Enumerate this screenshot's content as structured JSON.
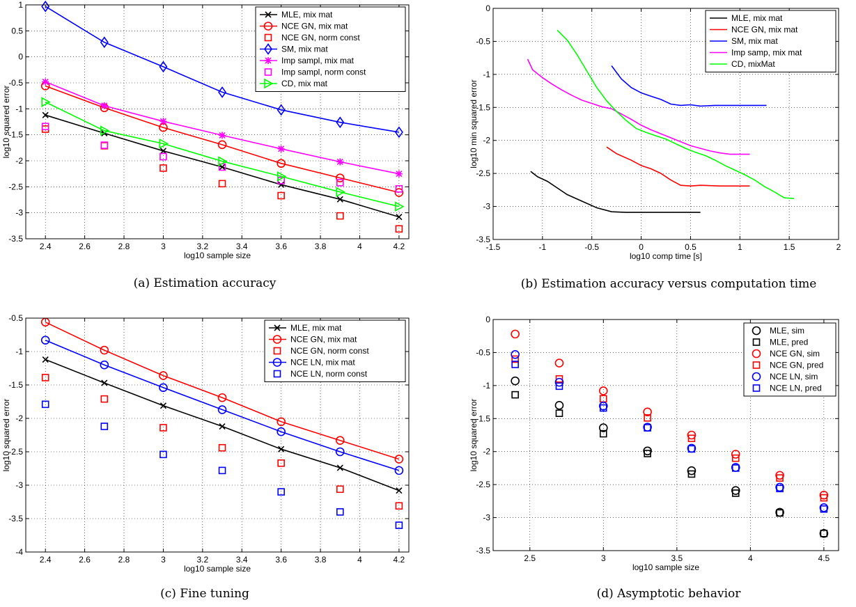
{
  "chart_data": [
    {
      "type": "line",
      "caption": "(a) Estimation accuracy",
      "xlabel": "log10 sample size",
      "ylabel": "log10 squared error",
      "xlim": [
        2.3,
        4.25
      ],
      "ylim": [
        -3.5,
        1
      ],
      "xticks": [
        2.4,
        2.6,
        2.8,
        3,
        3.2,
        3.4,
        3.6,
        3.8,
        4,
        4.2
      ],
      "yticks": [
        -3.5,
        -3,
        -2.5,
        -2,
        -1.5,
        -1,
        -0.5,
        0,
        0.5,
        1
      ],
      "grid": true,
      "legend_position": "top-right",
      "series": [
        {
          "name": "MLE, mix mat",
          "color": "#000000",
          "marker": "x",
          "line": true,
          "x": [
            2.4,
            2.7,
            3.0,
            3.3,
            3.6,
            3.9,
            4.2
          ],
          "y": [
            -1.12,
            -1.47,
            -1.81,
            -2.12,
            -2.46,
            -2.74,
            -3.08
          ]
        },
        {
          "name": "NCE GN, mix mat",
          "color": "#ff0000",
          "marker": "o",
          "line": true,
          "x": [
            2.4,
            2.7,
            3.0,
            3.3,
            3.6,
            3.9,
            4.2
          ],
          "y": [
            -0.56,
            -0.98,
            -1.36,
            -1.69,
            -2.05,
            -2.33,
            -2.61
          ]
        },
        {
          "name": "NCE GN, norm const",
          "color": "#ff0000",
          "marker": "s",
          "line": false,
          "x": [
            2.4,
            2.7,
            3.0,
            3.3,
            3.6,
            3.9,
            4.2
          ],
          "y": [
            -1.39,
            -1.71,
            -2.14,
            -2.44,
            -2.67,
            -3.06,
            -3.31
          ]
        },
        {
          "name": "SM, mix mat",
          "color": "#0000ff",
          "marker": "d",
          "line": true,
          "x": [
            2.4,
            2.7,
            3.0,
            3.3,
            3.6,
            3.9,
            4.2
          ],
          "y": [
            0.97,
            0.28,
            -0.19,
            -0.68,
            -1.02,
            -1.26,
            -1.45
          ]
        },
        {
          "name": "Imp sampl, mix mat",
          "color": "#ff00ff",
          "marker": "*",
          "line": true,
          "x": [
            2.4,
            2.7,
            3.0,
            3.3,
            3.6,
            3.9,
            4.2
          ],
          "y": [
            -0.48,
            -0.94,
            -1.24,
            -1.51,
            -1.77,
            -2.02,
            -2.25
          ]
        },
        {
          "name": "Imp sampl, norm const",
          "color": "#ff00ff",
          "marker": "s",
          "line": false,
          "x": [
            2.4,
            2.7,
            3.0,
            3.3,
            3.6,
            3.9,
            4.2
          ],
          "y": [
            -1.34,
            -1.7,
            -1.92,
            -2.12,
            -2.38,
            -2.42,
            -2.54
          ]
        },
        {
          "name": "CD, mix mat",
          "color": "#00ff00",
          "marker": ">",
          "line": true,
          "x": [
            2.4,
            2.7,
            3.0,
            3.3,
            3.6,
            3.9,
            4.2
          ],
          "y": [
            -0.87,
            -1.42,
            -1.67,
            -2.01,
            -2.3,
            -2.6,
            -2.88
          ]
        }
      ]
    },
    {
      "type": "line",
      "caption": "(b) Estimation accuracy versus computation time",
      "xlabel": "log10 comp time [s]",
      "ylabel": "log10 min squared error",
      "xlim": [
        -1.5,
        2
      ],
      "ylim": [
        -3.5,
        0
      ],
      "xticks": [
        -1.5,
        -1,
        -0.5,
        0,
        0.5,
        1,
        1.5,
        2
      ],
      "yticks": [
        -3.5,
        -3,
        -2.5,
        -2,
        -1.5,
        -1,
        -0.5,
        0
      ],
      "grid": true,
      "legend_position": "top-right",
      "series": [
        {
          "name": "MLE, mix mat",
          "color": "#000000",
          "marker": "",
          "line": true,
          "x": [
            -1.12,
            -1.05,
            -0.95,
            -0.85,
            -0.75,
            -0.6,
            -0.45,
            -0.3,
            -0.15,
            0,
            0.2,
            0.4,
            0.6
          ],
          "y": [
            -2.47,
            -2.55,
            -2.62,
            -2.72,
            -2.82,
            -2.92,
            -3.02,
            -3.08,
            -3.09,
            -3.09,
            -3.09,
            -3.09,
            -3.09
          ]
        },
        {
          "name": "NCE GN, mix mat",
          "color": "#ff0000",
          "marker": "",
          "line": true,
          "x": [
            -0.35,
            -0.25,
            -0.1,
            0.0,
            0.1,
            0.2,
            0.3,
            0.4,
            0.5,
            0.6,
            0.8,
            1.1
          ],
          "y": [
            -2.1,
            -2.2,
            -2.3,
            -2.38,
            -2.43,
            -2.5,
            -2.6,
            -2.68,
            -2.69,
            -2.68,
            -2.69,
            -2.69
          ]
        },
        {
          "name": "SM, mix mat",
          "color": "#0000ff",
          "marker": "",
          "line": true,
          "x": [
            -0.3,
            -0.2,
            -0.1,
            0.0,
            0.1,
            0.2,
            0.3,
            0.4,
            0.5,
            0.6,
            0.75,
            1.0,
            1.27
          ],
          "y": [
            -0.87,
            -1.07,
            -1.2,
            -1.28,
            -1.33,
            -1.38,
            -1.45,
            -1.47,
            -1.46,
            -1.48,
            -1.47,
            -1.47,
            -1.47
          ]
        },
        {
          "name": "Imp samp, mix mat",
          "color": "#ff00ff",
          "marker": "",
          "line": true,
          "x": [
            -1.15,
            -1.1,
            -1.0,
            -0.9,
            -0.8,
            -0.7,
            -0.6,
            -0.5,
            -0.4,
            -0.3,
            -0.2,
            -0.1,
            0.0,
            0.1,
            0.2,
            0.3,
            0.4,
            0.5,
            0.6,
            0.7,
            0.8,
            0.9,
            1.1
          ],
          "y": [
            -0.77,
            -0.93,
            -1.05,
            -1.15,
            -1.24,
            -1.32,
            -1.39,
            -1.44,
            -1.49,
            -1.52,
            -1.6,
            -1.68,
            -1.77,
            -1.84,
            -1.9,
            -1.96,
            -2.02,
            -2.08,
            -2.12,
            -2.16,
            -2.19,
            -2.21,
            -2.21
          ]
        },
        {
          "name": "CD, mixMat",
          "color": "#00ff00",
          "marker": "",
          "line": true,
          "x": [
            -0.85,
            -0.75,
            -0.65,
            -0.55,
            -0.45,
            -0.35,
            -0.25,
            -0.15,
            -0.05,
            0.05,
            0.15,
            0.25,
            0.35,
            0.45,
            0.55,
            0.65,
            0.75,
            0.85,
            0.95,
            1.05,
            1.15,
            1.25,
            1.35,
            1.45,
            1.55
          ],
          "y": [
            -0.33,
            -0.48,
            -0.7,
            -0.95,
            -1.2,
            -1.4,
            -1.56,
            -1.7,
            -1.82,
            -1.88,
            -1.93,
            -1.98,
            -2.05,
            -2.12,
            -2.18,
            -2.23,
            -2.3,
            -2.38,
            -2.45,
            -2.52,
            -2.6,
            -2.7,
            -2.78,
            -2.87,
            -2.88
          ]
        }
      ]
    },
    {
      "type": "line",
      "caption": "(c) Fine tuning",
      "xlabel": "log10 sample size",
      "ylabel": "log10 squared error",
      "xlim": [
        2.3,
        4.25
      ],
      "ylim": [
        -4,
        -0.5
      ],
      "xticks": [
        2.4,
        2.6,
        2.8,
        3,
        3.2,
        3.4,
        3.6,
        3.8,
        4,
        4.2
      ],
      "yticks": [
        -4,
        -3.5,
        -3,
        -2.5,
        -2,
        -1.5,
        -1,
        -0.5
      ],
      "grid": true,
      "legend_position": "top-right",
      "series": [
        {
          "name": "MLE, mix mat",
          "color": "#000000",
          "marker": "x",
          "line": true,
          "x": [
            2.4,
            2.7,
            3.0,
            3.3,
            3.6,
            3.9,
            4.2
          ],
          "y": [
            -1.12,
            -1.47,
            -1.81,
            -2.12,
            -2.46,
            -2.74,
            -3.08
          ]
        },
        {
          "name": "NCE GN, mix mat",
          "color": "#ff0000",
          "marker": "o",
          "line": true,
          "x": [
            2.4,
            2.7,
            3.0,
            3.3,
            3.6,
            3.9,
            4.2
          ],
          "y": [
            -0.56,
            -0.98,
            -1.36,
            -1.69,
            -2.05,
            -2.33,
            -2.61
          ]
        },
        {
          "name": "NCE GN, norm const",
          "color": "#ff0000",
          "marker": "s",
          "line": false,
          "x": [
            2.4,
            2.7,
            3.0,
            3.3,
            3.6,
            3.9,
            4.2
          ],
          "y": [
            -1.39,
            -1.71,
            -2.14,
            -2.44,
            -2.67,
            -3.06,
            -3.31
          ]
        },
        {
          "name": "NCE LN, mix mat",
          "color": "#0000ff",
          "marker": "o",
          "line": true,
          "x": [
            2.4,
            2.7,
            3.0,
            3.3,
            3.6,
            3.9,
            4.2
          ],
          "y": [
            -0.83,
            -1.2,
            -1.54,
            -1.87,
            -2.2,
            -2.5,
            -2.78
          ]
        },
        {
          "name": "NCE LN, norm const",
          "color": "#0000ff",
          "marker": "s",
          "line": false,
          "x": [
            2.4,
            2.7,
            3.0,
            3.3,
            3.6,
            3.9,
            4.2
          ],
          "y": [
            -1.79,
            -2.12,
            -2.54,
            -2.78,
            -3.1,
            -3.4,
            -3.6
          ]
        }
      ]
    },
    {
      "type": "scatter",
      "caption": "(d) Asymptotic behavior",
      "xlabel": "log10 sample size",
      "ylabel": "log10 squared error",
      "xlim": [
        2.25,
        4.6
      ],
      "ylim": [
        -3.5,
        0
      ],
      "xticks": [
        2.5,
        3,
        3.5,
        4,
        4.5
      ],
      "yticks": [
        -3.5,
        -3,
        -2.5,
        -2,
        -1.5,
        -1,
        -0.5,
        0
      ],
      "grid": true,
      "legend_position": "top-right",
      "series": [
        {
          "name": "MLE, sim",
          "color": "#000000",
          "marker": "o",
          "line": false,
          "x": [
            2.4,
            2.7,
            3.0,
            3.3,
            3.6,
            3.9,
            4.2,
            4.5
          ],
          "y": [
            -0.93,
            -1.3,
            -1.64,
            -1.99,
            -2.29,
            -2.59,
            -2.92,
            -3.24
          ]
        },
        {
          "name": "MLE, pred",
          "color": "#000000",
          "marker": "s",
          "line": false,
          "x": [
            2.4,
            2.7,
            3.0,
            3.3,
            3.6,
            3.9,
            4.2,
            4.5
          ],
          "y": [
            -1.14,
            -1.42,
            -1.73,
            -2.03,
            -2.34,
            -2.63,
            -2.93,
            -3.24
          ]
        },
        {
          "name": "NCE GN, sim",
          "color": "#ff0000",
          "marker": "o",
          "line": false,
          "x": [
            2.4,
            2.7,
            3.0,
            3.3,
            3.6,
            3.9,
            4.2,
            4.5
          ],
          "y": [
            -0.22,
            -0.66,
            -1.08,
            -1.4,
            -1.75,
            -2.04,
            -2.36,
            -2.66
          ]
        },
        {
          "name": "NCE GN, pred",
          "color": "#ff0000",
          "marker": "s",
          "line": false,
          "x": [
            2.4,
            2.7,
            3.0,
            3.3,
            3.6,
            3.9,
            4.2,
            4.5
          ],
          "y": [
            -0.6,
            -0.9,
            -1.2,
            -1.49,
            -1.8,
            -2.1,
            -2.4,
            -2.7
          ]
        },
        {
          "name": "NCE LN, sim",
          "color": "#0000ff",
          "marker": "o",
          "line": false,
          "x": [
            2.4,
            2.7,
            3.0,
            3.3,
            3.6,
            3.9,
            4.2,
            4.5
          ],
          "y": [
            -0.53,
            -0.95,
            -1.31,
            -1.63,
            -1.95,
            -2.24,
            -2.54,
            -2.85
          ]
        },
        {
          "name": "NCE LN, pred",
          "color": "#0000ff",
          "marker": "s",
          "line": false,
          "x": [
            2.4,
            2.7,
            3.0,
            3.3,
            3.6,
            3.9,
            4.2,
            4.5
          ],
          "y": [
            -0.68,
            -1.01,
            -1.34,
            -1.64,
            -1.96,
            -2.25,
            -2.56,
            -2.87
          ]
        }
      ]
    }
  ]
}
